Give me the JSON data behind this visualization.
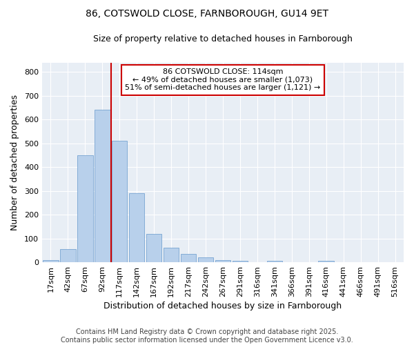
{
  "title": "86, COTSWOLD CLOSE, FARNBOROUGH, GU14 9ET",
  "subtitle": "Size of property relative to detached houses in Farnborough",
  "xlabel": "Distribution of detached houses by size in Farnborough",
  "ylabel": "Number of detached properties",
  "footer": "Contains HM Land Registry data © Crown copyright and database right 2025.\nContains public sector information licensed under the Open Government Licence v3.0.",
  "bin_labels": [
    "17sqm",
    "42sqm",
    "67sqm",
    "92sqm",
    "117sqm",
    "142sqm",
    "167sqm",
    "192sqm",
    "217sqm",
    "242sqm",
    "267sqm",
    "291sqm",
    "316sqm",
    "341sqm",
    "366sqm",
    "391sqm",
    "416sqm",
    "441sqm",
    "466sqm",
    "491sqm",
    "516sqm"
  ],
  "bar_values": [
    10,
    55,
    450,
    640,
    510,
    290,
    120,
    60,
    35,
    20,
    10,
    5,
    0,
    5,
    0,
    0,
    5,
    0,
    0,
    0,
    0
  ],
  "bar_color": "#b8d0eb",
  "bar_edge_color": "#6699cc",
  "annotation_text": "86 COTSWOLD CLOSE: 114sqm\n← 49% of detached houses are smaller (1,073)\n51% of semi-detached houses are larger (1,121) →",
  "annotation_box_facecolor": "#ffffff",
  "annotation_box_edgecolor": "#cc0000",
  "vline_color": "#cc0000",
  "vline_x_index": 4.0,
  "ylim": [
    0,
    840
  ],
  "yticks": [
    0,
    100,
    200,
    300,
    400,
    500,
    600,
    700,
    800
  ],
  "fig_facecolor": "#ffffff",
  "plot_bg_color": "#e8eef5",
  "grid_color": "#ffffff",
  "title_fontsize": 10,
  "subtitle_fontsize": 9,
  "axis_label_fontsize": 9,
  "tick_fontsize": 8,
  "footer_fontsize": 7,
  "annotation_fontsize": 8
}
